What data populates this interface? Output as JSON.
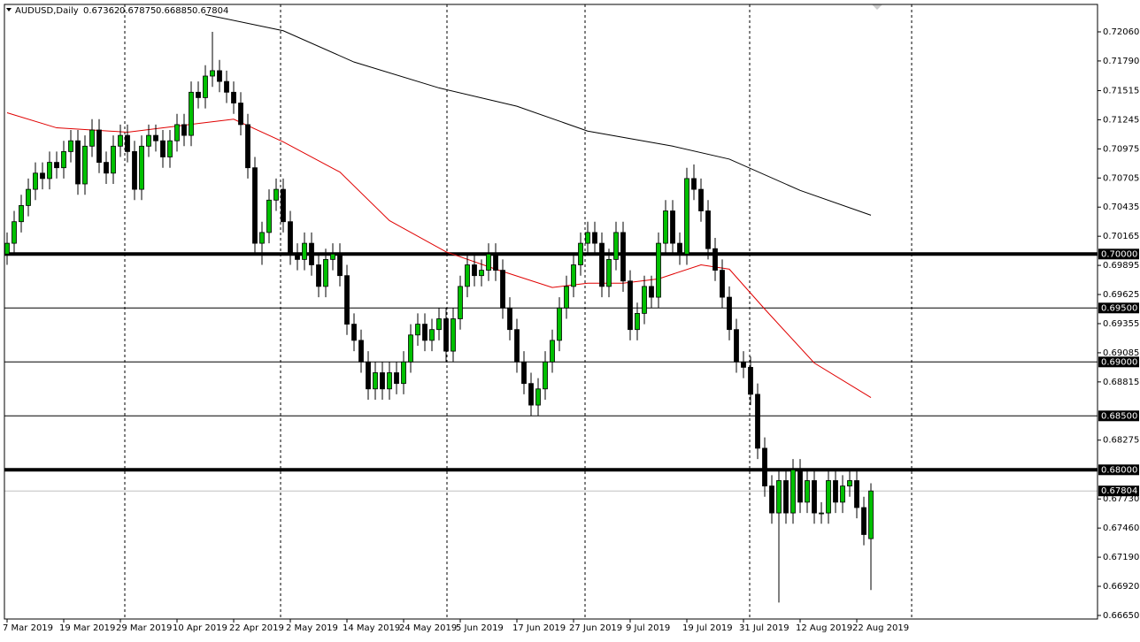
{
  "chart_data": {
    "type": "candlestick",
    "symbol": "AUDUSD,Daily",
    "categories": [
      "7 Mar 2019",
      null,
      null,
      null,
      null,
      null,
      null,
      null,
      "19 Mar 2019",
      null,
      null,
      null,
      null,
      null,
      null,
      null,
      "29 Mar 2019",
      null,
      null,
      null,
      null,
      null,
      null,
      null,
      "10 Apr 2019",
      null,
      null,
      null,
      null,
      null,
      null,
      null,
      "22 Apr 2019",
      null,
      null,
      null,
      null,
      null,
      null,
      null,
      "2 May 2019",
      null,
      null,
      null,
      null,
      null,
      null,
      null,
      "14 May 2019",
      null,
      null,
      null,
      null,
      null,
      null,
      null,
      "24 May 2019",
      null,
      null,
      null,
      null,
      null,
      null,
      null,
      "5 Jun 2019",
      null,
      null,
      null,
      null,
      null,
      null,
      null,
      "17 Jun 2019",
      null,
      null,
      null,
      null,
      null,
      null,
      null,
      "27 Jun 2019",
      null,
      null,
      null,
      null,
      null,
      null,
      null,
      "9 Jul 2019",
      null,
      null,
      null,
      null,
      null,
      null,
      null,
      "19 Jul 2019",
      null,
      null,
      null,
      null,
      null,
      null,
      null,
      "31 Jul 2019",
      null,
      null,
      null,
      null,
      null,
      null,
      null,
      "12 Aug 2019",
      null,
      null,
      null,
      null,
      null,
      null,
      null,
      "22 Aug 2019",
      null,
      null
    ],
    "open": [
      0.7,
      0.701,
      0.703,
      0.7045,
      0.706,
      0.7075,
      0.707,
      0.7085,
      0.708,
      0.7095,
      0.7105,
      0.7065,
      0.71,
      0.7115,
      0.7085,
      0.7075,
      0.71,
      0.711,
      0.7095,
      0.706,
      0.71,
      0.711,
      0.7105,
      0.709,
      0.7105,
      0.712,
      0.711,
      0.715,
      0.7145,
      0.7165,
      0.717,
      0.716,
      0.715,
      0.714,
      0.712,
      0.708,
      0.701,
      0.702,
      0.705,
      0.706,
      0.703,
      0.7,
      0.6995,
      0.701,
      0.699,
      0.697,
      0.6995,
      0.7,
      0.698,
      0.6935,
      0.692,
      0.69,
      0.6875,
      0.689,
      0.6875,
      0.689,
      0.688,
      0.69,
      0.6925,
      0.6935,
      0.692,
      0.693,
      0.694,
      0.691,
      0.694,
      0.697,
      0.699,
      0.698,
      0.6985,
      0.7,
      0.6985,
      0.695,
      0.693,
      0.69,
      0.688,
      0.686,
      0.6875,
      0.69,
      0.692,
      0.695,
      0.697,
      0.699,
      0.701,
      0.702,
      0.701,
      0.697,
      0.6995,
      0.702,
      0.6975,
      0.693,
      0.6945,
      0.697,
      0.696,
      0.701,
      0.704,
      0.701,
      0.7,
      0.707,
      0.706,
      0.704,
      0.7005,
      0.6985,
      0.696,
      0.693,
      0.69,
      0.6895,
      0.687,
      0.682,
      0.6785,
      0.676,
      0.679,
      0.676,
      0.68,
      0.677,
      0.679,
      0.676,
      0.676,
      0.679,
      0.677,
      0.6785,
      0.679,
      0.6765,
      0.67362
    ],
    "high": [
      0.702,
      0.704,
      0.7055,
      0.707,
      0.7085,
      0.7085,
      0.7095,
      0.7095,
      0.7105,
      0.7115,
      0.7115,
      0.711,
      0.7125,
      0.7125,
      0.7095,
      0.711,
      0.712,
      0.712,
      0.7105,
      0.711,
      0.712,
      0.712,
      0.7115,
      0.7115,
      0.713,
      0.713,
      0.716,
      0.716,
      0.7175,
      0.7206,
      0.718,
      0.717,
      0.716,
      0.715,
      0.713,
      0.709,
      0.703,
      0.706,
      0.707,
      0.707,
      0.704,
      0.701,
      0.702,
      0.702,
      0.7,
      0.7005,
      0.701,
      0.701,
      0.699,
      0.6945,
      0.693,
      0.691,
      0.69,
      0.69,
      0.69,
      0.69,
      0.691,
      0.6935,
      0.6945,
      0.6945,
      0.694,
      0.695,
      0.695,
      0.695,
      0.698,
      0.7,
      0.7,
      0.6995,
      0.701,
      0.701,
      0.6995,
      0.696,
      0.694,
      0.691,
      0.689,
      0.6885,
      0.691,
      0.693,
      0.696,
      0.698,
      0.7,
      0.702,
      0.703,
      0.703,
      0.702,
      0.7005,
      0.703,
      0.703,
      0.6985,
      0.6955,
      0.698,
      0.698,
      0.702,
      0.705,
      0.705,
      0.702,
      0.708,
      0.7083,
      0.707,
      0.705,
      0.7015,
      0.6995,
      0.697,
      0.694,
      0.691,
      0.6905,
      0.688,
      0.683,
      0.6795,
      0.68,
      0.68,
      0.681,
      0.681,
      0.68,
      0.68,
      0.677,
      0.68,
      0.68,
      0.6795,
      0.68,
      0.68,
      0.6775,
      0.67875
    ],
    "low": [
      0.699,
      0.7,
      0.702,
      0.7035,
      0.705,
      0.706,
      0.706,
      0.707,
      0.707,
      0.7085,
      0.7055,
      0.7055,
      0.709,
      0.7075,
      0.7065,
      0.7065,
      0.709,
      0.7085,
      0.705,
      0.705,
      0.709,
      0.7095,
      0.708,
      0.708,
      0.7095,
      0.71,
      0.71,
      0.7135,
      0.7135,
      0.7155,
      0.715,
      0.714,
      0.713,
      0.711,
      0.707,
      0.7,
      0.699,
      0.701,
      0.704,
      0.702,
      0.699,
      0.6985,
      0.6985,
      0.698,
      0.696,
      0.696,
      0.6985,
      0.697,
      0.6925,
      0.691,
      0.689,
      0.6865,
      0.6865,
      0.6865,
      0.6865,
      0.687,
      0.687,
      0.689,
      0.6915,
      0.691,
      0.691,
      0.692,
      0.69,
      0.69,
      0.693,
      0.696,
      0.697,
      0.697,
      0.6975,
      0.6975,
      0.694,
      0.692,
      0.689,
      0.687,
      0.685,
      0.685,
      0.6865,
      0.689,
      0.691,
      0.694,
      0.696,
      0.698,
      0.7,
      0.7,
      0.696,
      0.696,
      0.6985,
      0.6965,
      0.692,
      0.692,
      0.6935,
      0.695,
      0.695,
      0.7,
      0.7,
      0.699,
      0.699,
      0.705,
      0.703,
      0.6995,
      0.6975,
      0.695,
      0.692,
      0.689,
      0.6885,
      0.686,
      0.681,
      0.6775,
      0.675,
      0.6677,
      0.675,
      0.675,
      0.676,
      0.676,
      0.675,
      0.675,
      0.675,
      0.676,
      0.676,
      0.6775,
      0.6755,
      0.673,
      0.66885
    ],
    "close": [
      0.701,
      0.703,
      0.7045,
      0.706,
      0.7075,
      0.707,
      0.7085,
      0.708,
      0.7095,
      0.7105,
      0.7065,
      0.71,
      0.7115,
      0.7085,
      0.7075,
      0.71,
      0.711,
      0.7095,
      0.706,
      0.71,
      0.711,
      0.7105,
      0.709,
      0.7105,
      0.712,
      0.711,
      0.715,
      0.7145,
      0.7165,
      0.717,
      0.716,
      0.715,
      0.714,
      0.712,
      0.708,
      0.701,
      0.702,
      0.705,
      0.706,
      0.703,
      0.7,
      0.6995,
      0.701,
      0.699,
      0.697,
      0.6995,
      0.7,
      0.698,
      0.6935,
      0.692,
      0.69,
      0.6875,
      0.689,
      0.6875,
      0.689,
      0.688,
      0.69,
      0.6925,
      0.6935,
      0.692,
      0.693,
      0.694,
      0.691,
      0.694,
      0.697,
      0.699,
      0.698,
      0.6985,
      0.7,
      0.6985,
      0.695,
      0.693,
      0.69,
      0.688,
      0.686,
      0.6875,
      0.69,
      0.692,
      0.695,
      0.697,
      0.699,
      0.701,
      0.702,
      0.701,
      0.697,
      0.6995,
      0.702,
      0.6975,
      0.693,
      0.6945,
      0.697,
      0.696,
      0.701,
      0.704,
      0.701,
      0.7,
      0.707,
      0.706,
      0.704,
      0.7005,
      0.6985,
      0.696,
      0.693,
      0.69,
      0.6895,
      0.687,
      0.682,
      0.6785,
      0.676,
      0.679,
      0.676,
      0.68,
      0.677,
      0.679,
      0.676,
      0.676,
      0.679,
      0.677,
      0.6785,
      0.679,
      0.6765,
      0.674,
      0.67804
    ],
    "up_color": "#00c000",
    "down_color": "#000000",
    "lines": [
      {
        "color": "#e00000",
        "x": [
          0,
          7,
          17,
          27,
          32,
          39,
          47,
          54,
          62,
          69,
          77,
          82,
          87,
          92,
          98,
          102,
          107,
          114,
          122
        ],
        "values": [
          0.7131,
          0.7117,
          0.7113,
          0.7121,
          0.7125,
          0.7104,
          0.7076,
          0.7031,
          0.7002,
          0.6986,
          0.6969,
          0.6973,
          0.6973,
          0.6977,
          0.699,
          0.6986,
          0.6949,
          0.6899,
          0.6867
        ]
      },
      {
        "color": "#000000",
        "x": [
          28,
          39,
          49,
          61,
          72,
          82,
          94,
          102,
          112,
          122
        ],
        "values": [
          0.7222,
          0.7207,
          0.7178,
          0.7154,
          0.7137,
          0.7114,
          0.71,
          0.7088,
          0.7059,
          0.7036
        ]
      }
    ],
    "levels": [
      {
        "value": 0.7,
        "label": "0.70000",
        "weight": "thick"
      },
      {
        "value": 0.695,
        "label": "0.69500",
        "weight": "thin"
      },
      {
        "value": 0.69,
        "label": "0.69000",
        "weight": "thin"
      },
      {
        "value": 0.685,
        "label": "0.68500",
        "weight": "thin"
      },
      {
        "value": 0.68,
        "label": "0.68000",
        "weight": "thick"
      }
    ],
    "ylim": [
      0.66617,
      0.72314
    ],
    "yticks": [
      {
        "value": 0.7206,
        "label": "0.72060"
      },
      {
        "value": 0.7179,
        "label": "0.71790"
      },
      0.71515,
      0.71245,
      0.70975,
      0.70705,
      0.70435,
      0.70165,
      0.69895,
      0.69625,
      0.69355,
      0.69085,
      0.68815,
      0.68275,
      {
        "value": 0.6773,
        "label": "0.67730"
      },
      {
        "value": 0.6746,
        "label": "0.67460"
      },
      {
        "value": 0.6719,
        "label": "0.67190"
      },
      {
        "value": 0.6692,
        "label": "0.66920"
      },
      {
        "value": 0.6665,
        "label": "0.66650"
      }
    ]
  }
}
